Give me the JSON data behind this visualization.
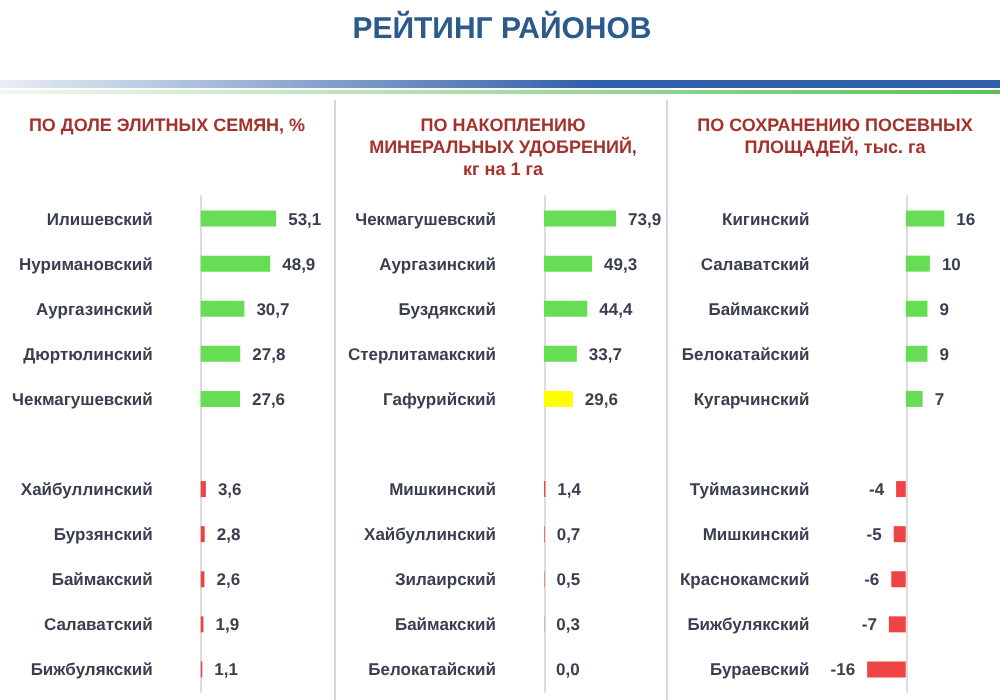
{
  "chart_data": [
    {
      "type": "bar",
      "orientation": "horizontal",
      "subtitle": "ПО ДОЛЕ ЭЛИТНЫХ СЕМЯН, %",
      "categories": [
        "Илишевский",
        "Нуримановский",
        "Аургазинский",
        "Дюртюлинский",
        "Чекмагушевский",
        null,
        "Хайбуллинский",
        "Бурзянский",
        "Баймакский",
        "Салаватский",
        "Бижбулякский"
      ],
      "values": [
        53.1,
        48.9,
        30.7,
        27.8,
        27.6,
        null,
        3.6,
        2.8,
        2.6,
        1.9,
        1.1
      ],
      "value_labels": [
        "53,1",
        "48,9",
        "30,7",
        "27,8",
        "27,6",
        null,
        "3,6",
        "2,8",
        "2,6",
        "1,9",
        "1,1"
      ],
      "colors": [
        "#66dd55",
        "#66dd55",
        "#66dd55",
        "#66dd55",
        "#66dd55",
        null,
        "#ee4444",
        "#ee4444",
        "#ee4444",
        "#ee4444",
        "#ee4444"
      ]
    },
    {
      "type": "bar",
      "orientation": "horizontal",
      "title": "РЕЙТИНГ РАЙОНОВ",
      "subtitle": "ПО НАКОПЛЕНИЮ\nМИНЕРАЛЬНЫХ УДОБРЕНИЙ,\nкг на 1 га",
      "categories": [
        "Чекмагушевский",
        "Аургазинский",
        "Буздякский",
        "Стерлитамакский",
        "Гафурийский",
        null,
        "Мишкинский",
        "Хайбуллинский",
        "Зилаирский",
        "Баймакский",
        "Белокатайский"
      ],
      "values": [
        73.9,
        49.3,
        44.4,
        33.7,
        29.6,
        null,
        1.4,
        0.7,
        0.5,
        0.3,
        0.0
      ],
      "value_labels": [
        "73,9",
        "49,3",
        "44,4",
        "33,7",
        "29,6",
        null,
        "1,4",
        "0,7",
        "0,5",
        "0,3",
        "0,0"
      ],
      "colors": [
        "#66dd55",
        "#66dd55",
        "#66dd55",
        "#66dd55",
        "#ffff00",
        null,
        "#ee4444",
        "#ee4444",
        "#ee4444",
        "#ee4444",
        "#ee4444"
      ]
    },
    {
      "type": "bar",
      "orientation": "horizontal",
      "subtitle": "ПО СОХРАНЕНИЮ ПОСЕВНЫХ\nПЛОЩАДЕЙ, тыс. га",
      "categories": [
        "Кигинский",
        "Салаватский",
        "Баймакский",
        "Белокатайский",
        "Кугарчинский",
        null,
        "Туймазинский",
        "Мишкинский",
        "Краснокамский",
        "Бижбулякский",
        "Бураевский"
      ],
      "values": [
        16,
        10,
        9,
        9,
        7,
        null,
        -4,
        -5,
        -6,
        -7,
        -16
      ],
      "value_labels": [
        "16",
        "10",
        "9",
        "9",
        "7",
        null,
        "-4",
        "-5",
        "-6",
        "-7",
        "-16"
      ],
      "colors": [
        "#66dd55",
        "#66dd55",
        "#66dd55",
        "#66dd55",
        "#66dd55",
        null,
        "#ee4444",
        "#ee4444",
        "#ee4444",
        "#ee4444",
        "#ee4444"
      ]
    }
  ]
}
